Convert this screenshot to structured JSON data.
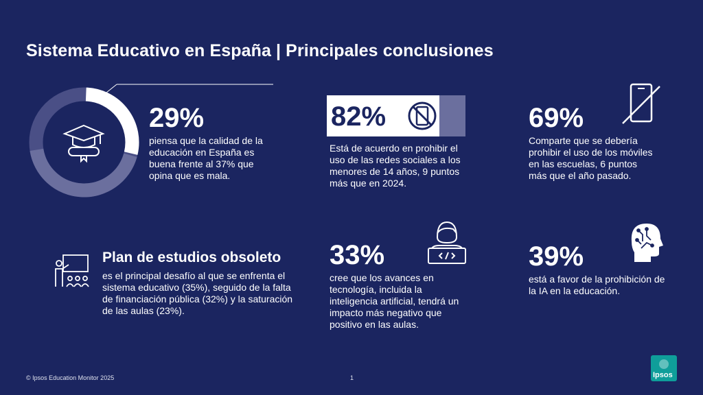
{
  "title": "Sistema Educativo en España | Principales conclusiones",
  "stats": [
    {
      "value": "29%",
      "text": [
        "piensa que la calidad de la",
        "educación en España es",
        "buena frente al 37% que",
        "opina que es mala."
      ],
      "fill_fraction": 0.29
    },
    {
      "value": "82%",
      "text": [
        "Está de acuerdo en prohibir el",
        "uso de las redes sociales a los",
        "menores de 14 años, 9 puntos",
        "más que en 2024."
      ]
    },
    {
      "value": "69%",
      "text": [
        "Comparte que se debería",
        "prohibir el uso de los móviles",
        "en las escuelas, 6 puntos",
        "más que el año pasado."
      ]
    },
    {
      "heading": "Plan de estudios obsoleto",
      "text": [
        "es el principal desafío al que se enfrenta el",
        "sistema educativo (35%), seguido de la falta",
        "de financiación pública (32%) y la saturación",
        "de las aulas (23%)."
      ]
    },
    {
      "value": "33%",
      "text": [
        "cree que los avances en",
        "tecnología, incluida la",
        "inteligencia artificial, tendrá un",
        "impacto más negativo que",
        "positivo en las aulas."
      ]
    },
    {
      "value": "39%",
      "text": [
        "está a favor de la prohibición de",
        "la IA en la educación."
      ]
    }
  ],
  "footer": {
    "source": "© Ipsos Education Monitor 2025",
    "page": "1"
  },
  "logo": {
    "text": "Ipsos"
  },
  "colors": {
    "background": "#1b2560",
    "donut_light": "#ffffff",
    "donut_mid": "#6b6f9e",
    "donut_dark": "#4a4f86",
    "brand": "#0f9e9a"
  },
  "icons": [
    "graduation-cap-diploma-icon",
    "no-phone-icon",
    "crossed-phone-icon",
    "teacher-classroom-icon",
    "developer-laptop-icon",
    "ai-head-icon"
  ]
}
